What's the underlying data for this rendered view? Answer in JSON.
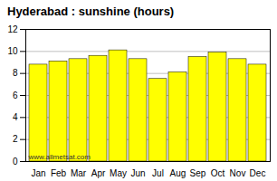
{
  "chart_data": {
    "type": "bar",
    "title": "Hyderabad : sunshine (hours)",
    "categories": [
      "Jan",
      "Feb",
      "Mar",
      "Apr",
      "May",
      "Jun",
      "Jul",
      "Aug",
      "Sep",
      "Oct",
      "Nov",
      "Dec"
    ],
    "values": [
      8.8,
      9.1,
      9.3,
      9.6,
      10.1,
      9.3,
      7.5,
      8.1,
      9.5,
      9.9,
      9.3,
      8.8
    ],
    "color": "#FFFF00",
    "ylim": [
      0,
      12
    ],
    "yticks": [
      0,
      2,
      4,
      6,
      8,
      10,
      12
    ],
    "grid": true,
    "annotations": [
      "www.allmetsat.com"
    ]
  }
}
